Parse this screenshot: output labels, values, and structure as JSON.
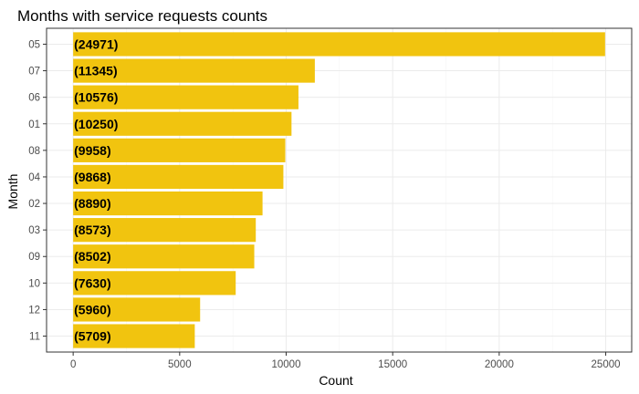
{
  "chart_data": {
    "type": "bar",
    "orientation": "horizontal",
    "title": "Months with service requests counts",
    "xlabel": "Count",
    "ylabel": "Month",
    "categories": [
      "05",
      "07",
      "06",
      "01",
      "08",
      "04",
      "02",
      "03",
      "09",
      "10",
      "12",
      "11"
    ],
    "values": [
      24971,
      11345,
      10576,
      10250,
      9958,
      9868,
      8890,
      8573,
      8502,
      7630,
      5960,
      5709
    ],
    "data_labels": [
      "(24971)",
      "(11345)",
      "(10576)",
      "(10250)",
      "(9958)",
      "(9868)",
      "(8890)",
      "(8573)",
      "(8502)",
      "(7630)",
      "(5960)",
      "(5709)"
    ],
    "xticks": [
      0,
      5000,
      10000,
      15000,
      20000,
      25000
    ],
    "xtick_labels": [
      "0",
      "5000",
      "10000",
      "15000",
      "20000",
      "25000"
    ],
    "xlim": [
      -1249,
      26220
    ],
    "grid": true,
    "legend": "none",
    "colors": {
      "bar": "#F1C40F",
      "grid_major": "#EBEBEB",
      "grid_minor": "#F5F5F5",
      "panel_border": "#333333"
    }
  }
}
